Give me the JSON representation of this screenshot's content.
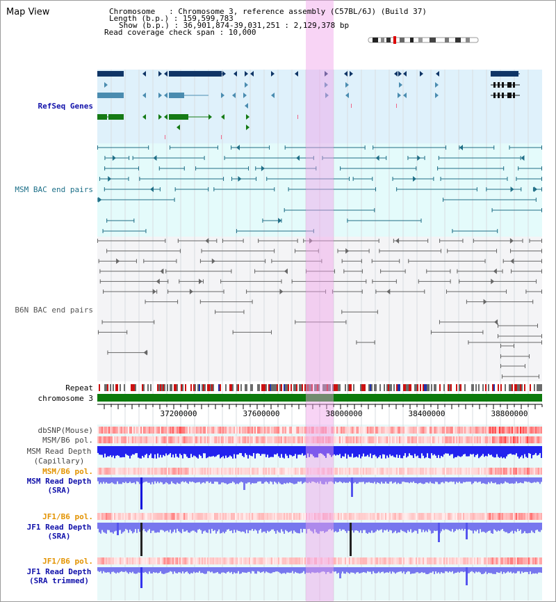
{
  "view_title": "Map View",
  "info": {
    "chromosome": "Chromosome   : Chromosome 3, reference assembly (C57BL/6J) (Build 37)",
    "length": "Length (b.p.) : 159,599,783",
    "show": "Show (b.p.) : 36,901,874-39,031,251 : 2,129,378 bp",
    "span": "Read coverage check span : 10,000"
  },
  "tracks": {
    "refseq": "RefSeq Genes",
    "msm_bac": "MSM BAC end pairs",
    "b6n_bac": "B6N BAC end pairs",
    "repeat": "Repeat",
    "chrom": "chromosome 3",
    "dbsnp": "dbSNP(Mouse)",
    "msm_pol": "MSM/B6 pol.",
    "msm_depth_cap_1": "MSM Read Depth",
    "msm_depth_cap_2": "(Capillary)",
    "msm_pol2": "MSM/B6 pol.",
    "msm_sra_1": "MSM Read Depth",
    "msm_sra_2": "(SRA)",
    "jf1_pol": "JF1/B6 pol.",
    "jf1_sra_1": "JF1 Read Depth",
    "jf1_sra_2": "(SRA)",
    "jf1_pol2": "JF1/B6 pol.",
    "jf1_trim_1": "JF1 Read Depth",
    "jf1_trim_2": "(SRA trimmed)"
  },
  "axis_ticks": [
    "37200000",
    "37600000",
    "38000000",
    "38400000",
    "38800000"
  ],
  "colors": {
    "refseq_bg": "#dff1fb",
    "msm_bg": "#e4fbfb",
    "b6n_bg": "#f4f4f6",
    "highlight": "#f6d2f2",
    "navy": "#0f3566",
    "teal": "#1f6e86",
    "steelblue": "#4a8cb0",
    "green": "#157a15",
    "gray": "#666666",
    "chrom_green": "#0c7a0c",
    "depth_blue": "#2222ee",
    "depth_light": "#7777ee",
    "snp_red": "#ee3333",
    "orange_label": "#e39300",
    "navy_label": "#1111aa",
    "teal_label": "#1c6f88"
  }
}
